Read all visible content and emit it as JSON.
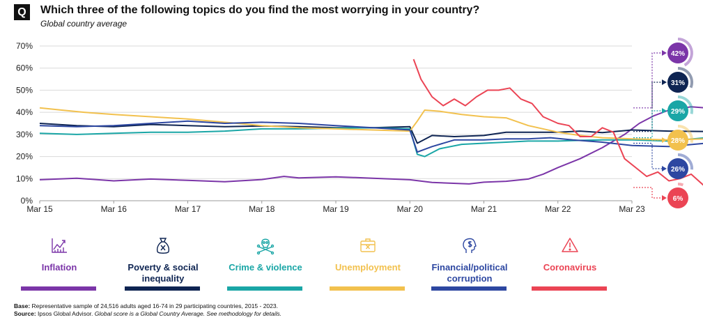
{
  "header": {
    "badge": "Q",
    "title": "Which three of the following topics do you find the most worrying in your country?",
    "subtitle": "Global country average"
  },
  "chart_data": {
    "type": "line",
    "xlabel": "",
    "ylabel": "",
    "ylim": [
      0,
      70
    ],
    "yticks": [
      "0%",
      "10%",
      "20%",
      "30%",
      "40%",
      "50%",
      "60%",
      "70%"
    ],
    "xticks": [
      "Mar 15",
      "Mar 16",
      "Mar 17",
      "Mar 18",
      "Mar 19",
      "Mar 20",
      "Mar 21",
      "Mar 22",
      "Mar 23"
    ],
    "x_range": [
      "2015-03",
      "2023-03"
    ],
    "grid": "horizontal",
    "series": [
      {
        "name": "Inflation",
        "color": "#7B35A8",
        "end_label": "42%",
        "points": [
          [
            0,
            9.5
          ],
          [
            0.5,
            10.2
          ],
          [
            1,
            9.0
          ],
          [
            1.5,
            9.8
          ],
          [
            2,
            9.2
          ],
          [
            2.5,
            8.6
          ],
          [
            3,
            9.6
          ],
          [
            3.3,
            11
          ],
          [
            3.5,
            10.3
          ],
          [
            4,
            10.8
          ],
          [
            4.5,
            10.2
          ],
          [
            5,
            9.5
          ],
          [
            5.3,
            8.3
          ],
          [
            5.5,
            8.0
          ],
          [
            5.8,
            7.6
          ],
          [
            6,
            8.4
          ],
          [
            6.3,
            8.8
          ],
          [
            6.6,
            9.8
          ],
          [
            6.8,
            12
          ],
          [
            7,
            15
          ],
          [
            7.3,
            19
          ],
          [
            7.6,
            24
          ],
          [
            7.9,
            30
          ],
          [
            8.1,
            35
          ],
          [
            8.3,
            38.5
          ],
          [
            8.5,
            41
          ],
          [
            8.8,
            42.5
          ],
          [
            9,
            42
          ]
        ]
      },
      {
        "name": "Poverty & social inequality",
        "color": "#0E2452",
        "end_label": "31%",
        "points": [
          [
            0,
            35
          ],
          [
            0.5,
            34
          ],
          [
            1,
            33.5
          ],
          [
            1.5,
            34.5
          ],
          [
            2,
            34
          ],
          [
            2.5,
            33.5
          ],
          [
            3,
            33.8
          ],
          [
            3.5,
            33.5
          ],
          [
            4,
            33
          ],
          [
            4.5,
            33
          ],
          [
            5,
            33.5
          ],
          [
            5.1,
            26
          ],
          [
            5.3,
            29.5
          ],
          [
            5.6,
            29
          ],
          [
            6,
            29.5
          ],
          [
            6.3,
            31
          ],
          [
            6.6,
            31
          ],
          [
            6.8,
            31
          ],
          [
            7,
            31
          ],
          [
            7.3,
            31.5
          ],
          [
            7.6,
            30.8
          ],
          [
            8,
            32
          ],
          [
            8.5,
            31.5
          ],
          [
            9,
            31.3
          ]
        ]
      },
      {
        "name": "Crime & violence",
        "color": "#1AA6A6",
        "end_label": "29%",
        "points": [
          [
            0,
            30.5
          ],
          [
            0.5,
            30
          ],
          [
            1,
            30.5
          ],
          [
            1.5,
            31
          ],
          [
            2,
            31
          ],
          [
            2.5,
            31.5
          ],
          [
            3,
            32.5
          ],
          [
            3.5,
            32.5
          ],
          [
            4,
            32.8
          ],
          [
            4.5,
            33
          ],
          [
            5,
            32.5
          ],
          [
            5.1,
            21
          ],
          [
            5.2,
            20
          ],
          [
            5.4,
            23.5
          ],
          [
            5.7,
            25.5
          ],
          [
            6,
            26
          ],
          [
            6.3,
            26.5
          ],
          [
            6.6,
            27
          ],
          [
            7,
            27
          ],
          [
            7.3,
            27.3
          ],
          [
            7.6,
            27.5
          ],
          [
            8,
            27.5
          ],
          [
            8.5,
            27
          ],
          [
            9,
            28.5
          ]
        ]
      },
      {
        "name": "Unemployment",
        "color": "#F2C14E",
        "end_label": "28%",
        "points": [
          [
            0,
            42
          ],
          [
            0.3,
            41
          ],
          [
            0.6,
            40
          ],
          [
            1,
            39
          ],
          [
            1.5,
            38
          ],
          [
            2,
            37
          ],
          [
            2.5,
            35.5
          ],
          [
            3,
            34
          ],
          [
            3.5,
            33
          ],
          [
            4,
            32.5
          ],
          [
            4.5,
            32
          ],
          [
            5,
            31.5
          ],
          [
            5.1,
            36
          ],
          [
            5.2,
            41
          ],
          [
            5.4,
            40.5
          ],
          [
            5.7,
            39
          ],
          [
            6,
            38
          ],
          [
            6.3,
            37.5
          ],
          [
            6.6,
            34
          ],
          [
            7,
            31
          ],
          [
            7.3,
            29.5
          ],
          [
            7.6,
            28.5
          ],
          [
            8,
            28
          ],
          [
            8.5,
            27.5
          ],
          [
            9,
            28
          ]
        ]
      },
      {
        "name": "Financial/political corruption",
        "color": "#2D47A1",
        "end_label": "26%",
        "points": [
          [
            0,
            34
          ],
          [
            0.5,
            33.5
          ],
          [
            1,
            34
          ],
          [
            1.5,
            35
          ],
          [
            2,
            36
          ],
          [
            2.5,
            35
          ],
          [
            3,
            35.5
          ],
          [
            3.5,
            35
          ],
          [
            4,
            34
          ],
          [
            4.5,
            33
          ],
          [
            5,
            32
          ],
          [
            5.1,
            22
          ],
          [
            5.3,
            24.5
          ],
          [
            5.6,
            27.5
          ],
          [
            6,
            27.5
          ],
          [
            6.3,
            28
          ],
          [
            6.6,
            28
          ],
          [
            6.9,
            28.5
          ],
          [
            7.2,
            27.5
          ],
          [
            7.6,
            26.5
          ],
          [
            8,
            25
          ],
          [
            8.5,
            24.5
          ],
          [
            9,
            26
          ]
        ]
      },
      {
        "name": "Coronavirus",
        "color": "#EB4454",
        "end_label": "6%",
        "points": [
          [
            5.05,
            64
          ],
          [
            5.15,
            55
          ],
          [
            5.3,
            47
          ],
          [
            5.45,
            43
          ],
          [
            5.6,
            46
          ],
          [
            5.75,
            43
          ],
          [
            5.9,
            47
          ],
          [
            6.05,
            50
          ],
          [
            6.2,
            50
          ],
          [
            6.35,
            51
          ],
          [
            6.5,
            46
          ],
          [
            6.65,
            44
          ],
          [
            6.8,
            38
          ],
          [
            7,
            35
          ],
          [
            7.15,
            34
          ],
          [
            7.3,
            29
          ],
          [
            7.45,
            29
          ],
          [
            7.6,
            33
          ],
          [
            7.75,
            31
          ],
          [
            7.9,
            19
          ],
          [
            8.05,
            15
          ],
          [
            8.2,
            11
          ],
          [
            8.35,
            13
          ],
          [
            8.5,
            9
          ],
          [
            8.65,
            10
          ],
          [
            8.8,
            12
          ],
          [
            9,
            6
          ]
        ]
      }
    ]
  },
  "legend": [
    {
      "label": "Inflation",
      "icon": "chart-icon"
    },
    {
      "label": "Poverty & social inequality",
      "icon": "money-bag-icon"
    },
    {
      "label": "Crime & violence",
      "icon": "skull-icon"
    },
    {
      "label": "Unemployment",
      "icon": "briefcase-icon"
    },
    {
      "label": "Financial/political corruption",
      "icon": "head-dollar-icon"
    },
    {
      "label": "Coronavirus",
      "icon": "warning-icon"
    }
  ],
  "footnote": {
    "base_label": "Base:",
    "base_text": " Representative  sample of 24,516 adults aged 16-74 in 29 participating countries, 2015 - 2023.",
    "source_label": "Source:",
    "source_text": " Ipsos Global Advisor.",
    "source_note": " Global score is a Global Country Average.  See methodology  for details."
  }
}
